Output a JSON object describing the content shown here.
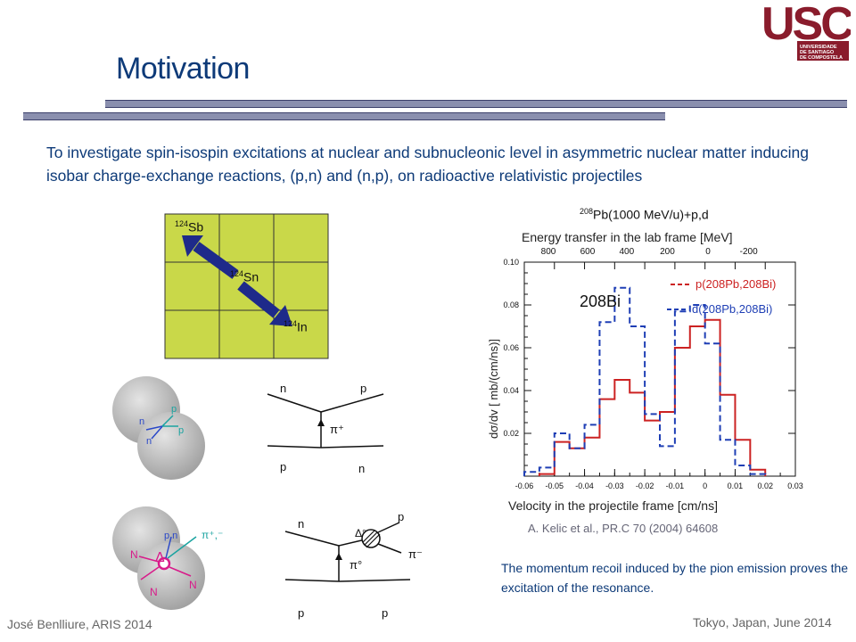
{
  "title": "Motivation",
  "logo": {
    "name": "USC",
    "subtitle": "UNIVERSIDADE DE SANTIAGO DE COMPOSTELA"
  },
  "intro": "To investigate spin-isospin excitations at nuclear and subnucleonic level in asymmetric nuclear matter inducing isobar charge-exchange reactions, (p,n) and (n,p), on radioactive relativistic projectiles",
  "nuclide_chart": {
    "sb": {
      "mass": "124",
      "symbol": "Sb"
    },
    "sn": {
      "mass": "124",
      "symbol": "Sn"
    },
    "in": {
      "mass": "124",
      "symbol": "In"
    }
  },
  "diagrams": {
    "top_left": {
      "n1": "n",
      "p1": "p",
      "p2": "p",
      "n2": "n"
    },
    "top_feynman": {
      "n_in": "n",
      "p_out": "p",
      "pion": "π⁺",
      "p_in": "p",
      "n_out": "n"
    },
    "bottom_left": {
      "pn": "p,n",
      "pion": "π⁺,⁻",
      "delta": "Δ",
      "N1": "N",
      "N2": "N",
      "N3": "N"
    },
    "bottom_feynman": {
      "n_in": "n",
      "p_out": "p",
      "delta": "Δ°",
      "pion_minus": "π⁻",
      "pi0": "π°",
      "p_in": "p",
      "p_out2": "p"
    }
  },
  "plot": {
    "title_pre": "208",
    "title_post": "Pb(1000 MeV/u)+p,d",
    "top_axis_label": "Energy transfer in the lab frame [MeV]",
    "label_bi": "208Bi",
    "legend_solid": "p(208Pb,208Bi)",
    "legend_dash": "d(208Pb,208Bi)",
    "ylabel": "dσ/dv [ mb/(cm/ns)]",
    "xlabel": "Velocity in the projectile frame [cm/ns]"
  },
  "chart_data": {
    "type": "line",
    "title": "208Pb(1000 MeV/u)+p,d",
    "xlabel": "Velocity in the projectile frame [cm/ns]",
    "ylabel": "dσ/dv [ mb/(cm/ns)]",
    "xlim": [
      -0.06,
      0.03
    ],
    "ylim": [
      0.0,
      0.1
    ],
    "x_ticks": [
      "-0.06",
      "-0.05",
      "-0.04",
      "-0.03",
      "-0.02",
      "-0.01",
      "0",
      "0.01",
      "0.02",
      "0.03"
    ],
    "y_ticks": [
      "0.02",
      "0.04",
      "0.06",
      "0.08",
      "0.10"
    ],
    "top_ticks": [
      "800",
      "600",
      "400",
      "200",
      "0",
      "-200"
    ],
    "series": [
      {
        "name": "p(208Pb,208Bi)",
        "style": "solid",
        "color": "#cc2222",
        "edges": [
          -0.055,
          -0.05,
          -0.045,
          -0.04,
          -0.035,
          -0.03,
          -0.025,
          -0.02,
          -0.015,
          -0.01,
          -0.005,
          0.0,
          0.005,
          0.01,
          0.015,
          0.02
        ],
        "values": [
          0.001,
          0.016,
          0.013,
          0.018,
          0.036,
          0.045,
          0.039,
          0.026,
          0.03,
          0.06,
          0.07,
          0.073,
          0.038,
          0.017,
          0.003
        ]
      },
      {
        "name": "d(208Pb,208Bi)",
        "style": "dash",
        "color": "#1f3fb5",
        "edges": [
          -0.06,
          -0.055,
          -0.05,
          -0.045,
          -0.04,
          -0.035,
          -0.03,
          -0.025,
          -0.02,
          -0.015,
          -0.01,
          -0.005,
          0.0,
          0.005,
          0.01,
          0.015,
          0.02
        ],
        "values": [
          0.002,
          0.004,
          0.02,
          0.013,
          0.024,
          0.072,
          0.088,
          0.07,
          0.029,
          0.014,
          0.077,
          0.08,
          0.062,
          0.017,
          0.005,
          0.001
        ]
      }
    ]
  },
  "citation": "A. Kelic et al., PR.C 70 (2004) 64608",
  "conclusion": "The momentum recoil induced by the pion emission proves the excitation of the resonance.",
  "footer_left": "José Benlliure, ARIS 2014",
  "footer_right": "Tokyo, Japan, June 2014",
  "colors": {
    "grid_fill": "#c9d849",
    "arrow": "#1e2a8a",
    "nucleus": "#bfbfbf",
    "title": "#0d3a78"
  }
}
